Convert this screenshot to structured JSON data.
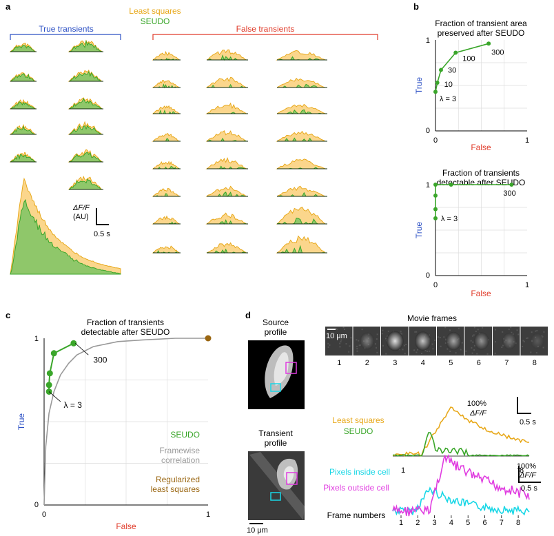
{
  "colors": {
    "green": "#3aa62a",
    "green_fill": "#8fc76a",
    "orange": "#e8a91c",
    "orange_fill": "#fbd68c",
    "blue": "#2b4fc4",
    "red": "#e03b2a",
    "gray": "#999999",
    "brown": "#9a6611",
    "cyan": "#19d7e6",
    "magenta": "#e03ce0"
  },
  "panel_a": {
    "letter": "a",
    "legend_ls": "Least squares",
    "legend_seudo": "SEUDO",
    "true_label": "True transients",
    "false_label": "False transients",
    "scale_label_1": "ΔF/F",
    "scale_label_2": "(AU)",
    "scale_time": "0.5 s"
  },
  "panel_b": {
    "letter": "b",
    "top": {
      "title_1": "Fraction of transient area",
      "title_2": "preserved after SEUDO",
      "ylabel": "True",
      "xlabel": "False",
      "yticks": [
        "0",
        "1"
      ],
      "xticks": [
        "0",
        "1"
      ],
      "lambda_labels": [
        "λ = 3",
        "10",
        "30",
        "100",
        "300"
      ],
      "chart_data": {
        "type": "line",
        "x": [
          0.0,
          0.02,
          0.06,
          0.22,
          0.58
        ],
        "y": [
          0.43,
          0.53,
          0.67,
          0.86,
          0.96
        ],
        "xlim": [
          0,
          1
        ],
        "ylim": [
          0,
          1
        ]
      }
    },
    "bottom": {
      "title_1": "Fraction of transients",
      "title_2": "detectable after SEUDO",
      "ylabel": "True",
      "xlabel": "False",
      "yticks": [
        "0",
        "1"
      ],
      "xticks": [
        "0",
        "1"
      ],
      "lambda_labels": [
        "λ = 3",
        "300"
      ],
      "chart_data": {
        "type": "line",
        "x": [
          0,
          0,
          0,
          0,
          0.17,
          0.83
        ],
        "y": [
          0.63,
          0.73,
          0.88,
          1.0,
          1.0,
          1.0
        ],
        "xlim": [
          0,
          1
        ],
        "ylim": [
          0,
          1
        ]
      }
    }
  },
  "panel_c": {
    "letter": "c",
    "title_1": "Fraction of transients",
    "title_2": "detectable after SEUDO",
    "ylabel": "True",
    "xlabel": "False",
    "yticks": [
      "0",
      "1"
    ],
    "xticks": [
      "0",
      "1"
    ],
    "lambda_labels": [
      "300",
      "λ = 3"
    ],
    "legend": [
      "SEUDO",
      "Framewise",
      "correlation",
      "Regularized",
      "least squares"
    ],
    "chart_data": {
      "type": "line",
      "series": [
        {
          "name": "SEUDO",
          "x": [
            0.03,
            0.03,
            0.035,
            0.06,
            0.18
          ],
          "y": [
            0.68,
            0.72,
            0.79,
            0.91,
            0.97
          ]
        },
        {
          "name": "Framewise correlation",
          "x": [
            0,
            0.01,
            0.03,
            0.06,
            0.1,
            0.15,
            0.2,
            0.3,
            0.45,
            0.6,
            0.8,
            1.0
          ],
          "y": [
            0,
            0.35,
            0.55,
            0.68,
            0.78,
            0.85,
            0.9,
            0.95,
            0.98,
            0.99,
            1.0,
            1.0
          ]
        },
        {
          "name": "Regularized least squares",
          "x": [
            1.0
          ],
          "y": [
            1.0
          ]
        }
      ],
      "xlim": [
        0,
        1
      ],
      "ylim": [
        0,
        1
      ]
    }
  },
  "panel_d": {
    "letter": "d",
    "source_1": "Source",
    "source_2": "profile",
    "transient_1": "Transient",
    "transient_2": "profile",
    "scale_um": "10 μm",
    "movie_title": "Movie frames",
    "movie_scale": "10 μm",
    "frame_numbers": [
      "1",
      "2",
      "3",
      "4",
      "5",
      "6",
      "7",
      "8"
    ],
    "trace_scale_1": "100%",
    "trace_scale_2": "ΔF/F",
    "trace_time": "0.5 s",
    "legend_ls": "Least squares",
    "legend_seudo": "SEUDO",
    "pix_in": "Pixels inside cell",
    "pix_out": "Pixels outside cell",
    "frame_numbers_label": "Frame numbers",
    "scale2_1": "100%",
    "scale2_2": "ΔF/F",
    "scale2_time": "0.5 s"
  }
}
